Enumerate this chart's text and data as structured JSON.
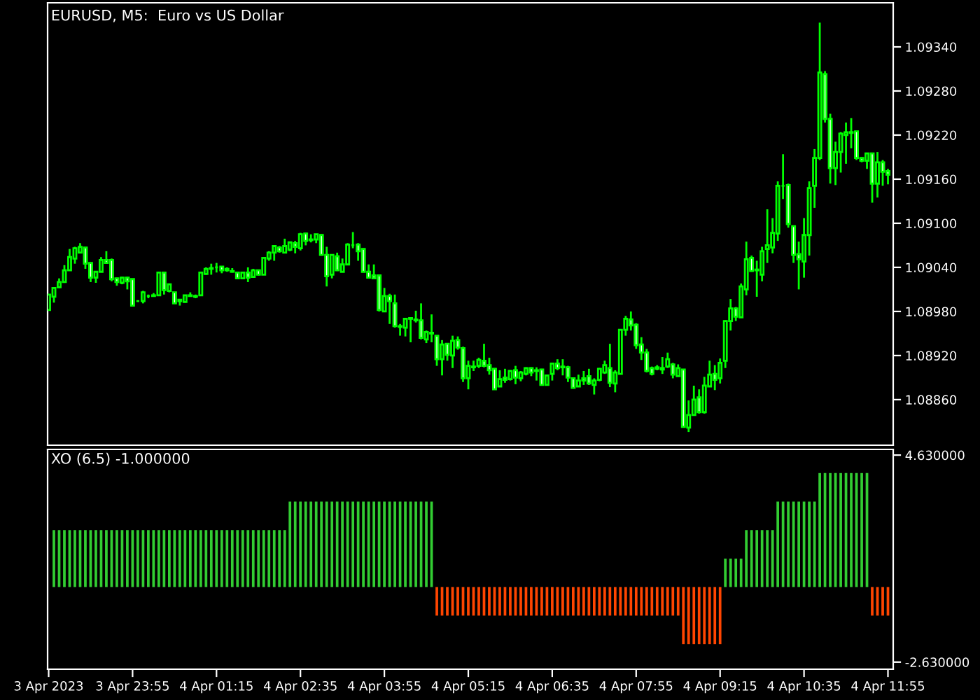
{
  "chart_data": [
    {
      "type": "candlestick",
      "title": "EURUSD, M5:  Euro vs US Dollar",
      "color": "#00ff00",
      "x": [
        "2023-04-03T22:35",
        "2023-04-03T22:40",
        "2023-04-03T22:45",
        "2023-04-03T22:50",
        "2023-04-03T22:55",
        "2023-04-03T23:00",
        "2023-04-03T23:05",
        "2023-04-03T23:10",
        "2023-04-03T23:15",
        "2023-04-03T23:20",
        "2023-04-03T23:25",
        "2023-04-03T23:30",
        "2023-04-03T23:35",
        "2023-04-03T23:40",
        "2023-04-03T23:45",
        "2023-04-03T23:50",
        "2023-04-03T23:55",
        "2023-04-04T00:00",
        "2023-04-04T00:05",
        "2023-04-04T00:10",
        "2023-04-04T00:15",
        "2023-04-04T00:20",
        "2023-04-04T00:25",
        "2023-04-04T00:30",
        "2023-04-04T00:35",
        "2023-04-04T00:40",
        "2023-04-04T00:45",
        "2023-04-04T00:50",
        "2023-04-04T00:55",
        "2023-04-04T01:00",
        "2023-04-04T01:05",
        "2023-04-04T01:10",
        "2023-04-04T01:15",
        "2023-04-04T01:20",
        "2023-04-04T01:25",
        "2023-04-04T01:30",
        "2023-04-04T01:35",
        "2023-04-04T01:40",
        "2023-04-04T01:45",
        "2023-04-04T01:50",
        "2023-04-04T01:55",
        "2023-04-04T02:00",
        "2023-04-04T02:05",
        "2023-04-04T02:10",
        "2023-04-04T02:15",
        "2023-04-04T02:20",
        "2023-04-04T02:25",
        "2023-04-04T02:30",
        "2023-04-04T02:35",
        "2023-04-04T02:40",
        "2023-04-04T02:45",
        "2023-04-04T02:50",
        "2023-04-04T02:55",
        "2023-04-04T03:00",
        "2023-04-04T03:05",
        "2023-04-04T03:10",
        "2023-04-04T03:15",
        "2023-04-04T03:20",
        "2023-04-04T03:25",
        "2023-04-04T03:30",
        "2023-04-04T03:35",
        "2023-04-04T03:40",
        "2023-04-04T03:45",
        "2023-04-04T03:50",
        "2023-04-04T03:55",
        "2023-04-04T04:00",
        "2023-04-04T04:05",
        "2023-04-04T04:10",
        "2023-04-04T04:15",
        "2023-04-04T04:20",
        "2023-04-04T04:25",
        "2023-04-04T04:30",
        "2023-04-04T04:35",
        "2023-04-04T04:40",
        "2023-04-04T04:45",
        "2023-04-04T04:50",
        "2023-04-04T04:55",
        "2023-04-04T05:00",
        "2023-04-04T05:05",
        "2023-04-04T05:10",
        "2023-04-04T05:15",
        "2023-04-04T05:20",
        "2023-04-04T05:25",
        "2023-04-04T05:30",
        "2023-04-04T05:35",
        "2023-04-04T05:40",
        "2023-04-04T05:45",
        "2023-04-04T05:50",
        "2023-04-04T05:55",
        "2023-04-04T06:00",
        "2023-04-04T06:05",
        "2023-04-04T06:10",
        "2023-04-04T06:15",
        "2023-04-04T06:20",
        "2023-04-04T06:25",
        "2023-04-04T06:30",
        "2023-04-04T06:35",
        "2023-04-04T06:40",
        "2023-04-04T06:45",
        "2023-04-04T06:50",
        "2023-04-04T06:55",
        "2023-04-04T07:00",
        "2023-04-04T07:05",
        "2023-04-04T07:10",
        "2023-04-04T07:15",
        "2023-04-04T07:20",
        "2023-04-04T07:25",
        "2023-04-04T07:30",
        "2023-04-04T07:35",
        "2023-04-04T07:40",
        "2023-04-04T07:45",
        "2023-04-04T07:50",
        "2023-04-04T07:55",
        "2023-04-04T08:00",
        "2023-04-04T08:05",
        "2023-04-04T08:10",
        "2023-04-04T08:15",
        "2023-04-04T08:20",
        "2023-04-04T08:25",
        "2023-04-04T08:30",
        "2023-04-04T08:35",
        "2023-04-04T08:40",
        "2023-04-04T08:45",
        "2023-04-04T08:50",
        "2023-04-04T08:55",
        "2023-04-04T09:00",
        "2023-04-04T09:05",
        "2023-04-04T09:10",
        "2023-04-04T09:15",
        "2023-04-04T09:20",
        "2023-04-04T09:25",
        "2023-04-04T09:30",
        "2023-04-04T09:35",
        "2023-04-04T09:40",
        "2023-04-04T09:45",
        "2023-04-04T09:50",
        "2023-04-04T09:55",
        "2023-04-04T10:00",
        "2023-04-04T10:05",
        "2023-04-04T10:10",
        "2023-04-04T10:15",
        "2023-04-04T10:20",
        "2023-04-04T10:25",
        "2023-04-04T10:30",
        "2023-04-04T10:35",
        "2023-04-04T10:40",
        "2023-04-04T10:45",
        "2023-04-04T10:50",
        "2023-04-04T10:55",
        "2023-04-04T11:00",
        "2023-04-04T11:05",
        "2023-04-04T11:10",
        "2023-04-04T11:15",
        "2023-04-04T11:20",
        "2023-04-04T11:25",
        "2023-04-04T11:30",
        "2023-04-04T11:35",
        "2023-04-04T11:40",
        "2023-04-04T11:45",
        "2023-04-04T11:50",
        "2023-04-04T11:55"
      ],
      "ohlc": [
        [
          1.08982,
          1.09003,
          1.08982,
          1.09003
        ],
        [
          1.09,
          1.09012,
          1.08992,
          1.09012
        ],
        [
          1.09013,
          1.09025,
          1.09012,
          1.0902
        ],
        [
          1.0902,
          1.09043,
          1.0902,
          1.09036
        ],
        [
          1.09036,
          1.09065,
          1.09036,
          1.09054
        ],
        [
          1.09052,
          1.09068,
          1.09045,
          1.09066
        ],
        [
          1.0906,
          1.09073,
          1.0906,
          1.09068
        ],
        [
          1.09067,
          1.09067,
          1.09038,
          1.09045
        ],
        [
          1.09046,
          1.09046,
          1.0902,
          1.09026
        ],
        [
          1.09026,
          1.09034,
          1.09019,
          1.09034
        ],
        [
          1.09034,
          1.09054,
          1.09034,
          1.0905
        ],
        [
          1.0905,
          1.09062,
          1.09045,
          1.09046
        ],
        [
          1.0905,
          1.09052,
          1.09021,
          1.09024
        ],
        [
          1.09025,
          1.09026,
          1.09015,
          1.0902
        ],
        [
          1.09019,
          1.09027,
          1.09017,
          1.09026
        ],
        [
          1.09026,
          1.09027,
          1.0901,
          1.09021
        ],
        [
          1.09024,
          1.09024,
          1.08988,
          1.08988
        ],
        [
          1.08994,
          1.08994,
          1.08994,
          1.08994
        ],
        [
          1.08994,
          1.09008,
          1.08991,
          1.09006
        ],
        [
          1.09001,
          1.09003,
          1.08998,
          1.09001
        ],
        [
          1.09001,
          1.09005,
          1.09,
          1.09002
        ],
        [
          1.09002,
          1.09033,
          1.09002,
          1.09033
        ],
        [
          1.09033,
          1.09033,
          1.09003,
          1.09009
        ],
        [
          1.09008,
          1.09017,
          1.09006,
          1.09017
        ],
        [
          1.09006,
          1.09006,
          1.08991,
          1.08991
        ],
        [
          1.08996,
          1.08996,
          1.08988,
          1.08994
        ],
        [
          1.08993,
          1.09002,
          1.08992,
          1.09002
        ],
        [
          1.09001,
          1.09006,
          1.09,
          1.09002
        ],
        [
          1.09,
          1.09003,
          1.08998,
          1.09001
        ],
        [
          1.09002,
          1.09033,
          1.09002,
          1.09033
        ],
        [
          1.09031,
          1.0904,
          1.0903,
          1.09038
        ],
        [
          1.09038,
          1.09045,
          1.0903,
          1.09039
        ],
        [
          1.0904,
          1.09046,
          1.09033,
          1.0904
        ],
        [
          1.09041,
          1.09041,
          1.09032,
          1.09036
        ],
        [
          1.09038,
          1.0904,
          1.09034,
          1.09036
        ],
        [
          1.09035,
          1.09039,
          1.09033,
          1.09034
        ],
        [
          1.09033,
          1.09033,
          1.09025,
          1.09025
        ],
        [
          1.09025,
          1.09034,
          1.09024,
          1.09033
        ],
        [
          1.09033,
          1.0904,
          1.0902,
          1.09026
        ],
        [
          1.09027,
          1.09038,
          1.09026,
          1.09036
        ],
        [
          1.09036,
          1.09037,
          1.09029,
          1.0903
        ],
        [
          1.0903,
          1.09053,
          1.0903,
          1.09053
        ],
        [
          1.09052,
          1.09062,
          1.09049,
          1.0906
        ],
        [
          1.0906,
          1.09069,
          1.09049,
          1.09069
        ],
        [
          1.09067,
          1.09069,
          1.0906,
          1.09062
        ],
        [
          1.0906,
          1.09079,
          1.0906,
          1.09069
        ],
        [
          1.09064,
          1.09074,
          1.09062,
          1.09074
        ],
        [
          1.09073,
          1.09076,
          1.09059,
          1.09068
        ],
        [
          1.09066,
          1.09087,
          1.09063,
          1.09085
        ],
        [
          1.09086,
          1.09087,
          1.0907,
          1.09076
        ],
        [
          1.09078,
          1.09085,
          1.09074,
          1.09077
        ],
        [
          1.09078,
          1.09085,
          1.09073,
          1.09085
        ],
        [
          1.09084,
          1.09085,
          1.09057,
          1.09057
        ],
        [
          1.09057,
          1.09068,
          1.09014,
          1.09028
        ],
        [
          1.0903,
          1.09058,
          1.09025,
          1.09057
        ],
        [
          1.09055,
          1.0906,
          1.09035,
          1.09036
        ],
        [
          1.09034,
          1.09052,
          1.09034,
          1.09044
        ],
        [
          1.09044,
          1.09073,
          1.09044,
          1.09071
        ],
        [
          1.0907,
          1.09088,
          1.09066,
          1.0907
        ],
        [
          1.09071,
          1.09073,
          1.09049,
          1.09062
        ],
        [
          1.09065,
          1.09066,
          1.09034,
          1.09034
        ],
        [
          1.09034,
          1.09044,
          1.09025,
          1.09026
        ],
        [
          1.09029,
          1.09044,
          1.09024,
          1.09025
        ],
        [
          1.09029,
          1.0903,
          1.0898,
          1.08982
        ],
        [
          1.0898,
          1.09012,
          1.0898,
          1.09001
        ],
        [
          1.09001,
          1.09004,
          1.08963,
          1.08994
        ],
        [
          1.08991,
          1.09003,
          1.08958,
          1.0896
        ],
        [
          1.0896,
          1.08963,
          1.08947,
          1.08959
        ],
        [
          1.08958,
          1.08971,
          1.08946,
          1.0897
        ],
        [
          1.08971,
          1.08972,
          1.08938,
          1.0897
        ],
        [
          1.08969,
          1.08981,
          1.08965,
          1.08968
        ],
        [
          1.08968,
          1.08991,
          1.08942,
          1.08944
        ],
        [
          1.08942,
          1.08954,
          1.08937,
          1.08952
        ],
        [
          1.08951,
          1.08976,
          1.08938,
          1.0895
        ],
        [
          1.08947,
          1.08947,
          1.08906,
          1.08915
        ],
        [
          1.08915,
          1.08941,
          1.08893,
          1.08935
        ],
        [
          1.08936,
          1.08937,
          1.08913,
          1.08921
        ],
        [
          1.0892,
          1.08947,
          1.08903,
          1.0894
        ],
        [
          1.08941,
          1.08946,
          1.08928,
          1.08931
        ],
        [
          1.0893,
          1.08932,
          1.08884,
          1.08889
        ],
        [
          1.08889,
          1.08913,
          1.08874,
          1.08906
        ],
        [
          1.08904,
          1.08913,
          1.08899,
          1.08905
        ],
        [
          1.08906,
          1.08917,
          1.08903,
          1.08914
        ],
        [
          1.08913,
          1.08936,
          1.08904,
          1.08906
        ],
        [
          1.08907,
          1.08917,
          1.08894,
          1.089
        ],
        [
          1.08902,
          1.08903,
          1.08874,
          1.08874
        ],
        [
          1.08878,
          1.089,
          1.08878,
          1.08888
        ],
        [
          1.0889,
          1.08902,
          1.08883,
          1.08887
        ],
        [
          1.08888,
          1.089,
          1.08886,
          1.08899
        ],
        [
          1.089,
          1.08906,
          1.08881,
          1.0889
        ],
        [
          1.08889,
          1.08899,
          1.08885,
          1.08897
        ],
        [
          1.08895,
          1.08904,
          1.08893,
          1.08903
        ],
        [
          1.08903,
          1.08904,
          1.08892,
          1.08897
        ],
        [
          1.089,
          1.08904,
          1.08886,
          1.08899
        ],
        [
          1.08901,
          1.08902,
          1.0888,
          1.0888
        ],
        [
          1.0888,
          1.08894,
          1.0888,
          1.08893
        ],
        [
          1.08895,
          1.08909,
          1.08886,
          1.08909
        ],
        [
          1.08909,
          1.08915,
          1.089,
          1.08903
        ],
        [
          1.08905,
          1.08915,
          1.08893,
          1.08904
        ],
        [
          1.08904,
          1.08906,
          1.08884,
          1.0889
        ],
        [
          1.08889,
          1.0889,
          1.08876,
          1.08876
        ],
        [
          1.08878,
          1.08894,
          1.08878,
          1.08886
        ],
        [
          1.08889,
          1.08899,
          1.0888,
          1.08886
        ],
        [
          1.08892,
          1.08902,
          1.0888,
          1.08882
        ],
        [
          1.0888,
          1.08889,
          1.08867,
          1.08886
        ],
        [
          1.08887,
          1.08903,
          1.08885,
          1.08902
        ],
        [
          1.08897,
          1.08913,
          1.08895,
          1.08907
        ],
        [
          1.08903,
          1.08936,
          1.08877,
          1.08883
        ],
        [
          1.08882,
          1.089,
          1.0887,
          1.08897
        ],
        [
          1.08895,
          1.08955,
          1.08895,
          1.08955
        ],
        [
          1.08955,
          1.08974,
          1.08947,
          1.0897
        ],
        [
          1.08969,
          1.0898,
          1.08954,
          1.08961
        ],
        [
          1.08962,
          1.08964,
          1.08929,
          1.08934
        ],
        [
          1.08935,
          1.08945,
          1.08914,
          1.08924
        ],
        [
          1.08924,
          1.08929,
          1.08897,
          1.08899
        ],
        [
          1.08903,
          1.08905,
          1.08893,
          1.08895
        ],
        [
          1.08904,
          1.08907,
          1.089,
          1.08902
        ],
        [
          1.08903,
          1.08918,
          1.08895,
          1.08901
        ],
        [
          1.08905,
          1.08924,
          1.08903,
          1.08915
        ],
        [
          1.08908,
          1.0891,
          1.08889,
          1.08894
        ],
        [
          1.08892,
          1.08908,
          1.08892,
          1.08903
        ],
        [
          1.08901,
          1.08901,
          1.08823,
          1.08823
        ],
        [
          1.08822,
          1.08859,
          1.08816,
          1.08839
        ],
        [
          1.08839,
          1.08879,
          1.08839,
          1.0886
        ],
        [
          1.08863,
          1.08874,
          1.08841,
          1.08843
        ],
        [
          1.08843,
          1.08891,
          1.08841,
          1.08879
        ],
        [
          1.08878,
          1.08913,
          1.08878,
          1.08894
        ],
        [
          1.08895,
          1.08907,
          1.08873,
          1.08887
        ],
        [
          1.08889,
          1.08916,
          1.08882,
          1.0891
        ],
        [
          1.08913,
          1.08968,
          1.08903,
          1.08967
        ],
        [
          1.08967,
          1.08997,
          1.08954,
          1.08984
        ],
        [
          1.08984,
          1.08986,
          1.08967,
          1.08973
        ],
        [
          1.08972,
          1.09018,
          1.08972,
          1.09014
        ],
        [
          1.0901,
          1.09075,
          1.09002,
          1.09051
        ],
        [
          1.09053,
          1.09056,
          1.09034,
          1.09035
        ],
        [
          1.09037,
          1.09049,
          1.09,
          1.09036
        ],
        [
          1.0903,
          1.09068,
          1.09021,
          1.09062
        ],
        [
          1.09065,
          1.09119,
          1.09046,
          1.0907
        ],
        [
          1.09067,
          1.09107,
          1.09059,
          1.09087
        ],
        [
          1.09086,
          1.09157,
          1.09076,
          1.09151
        ],
        [
          1.09151,
          1.09194,
          1.09133,
          1.09151
        ],
        [
          1.09152,
          1.09154,
          1.09094,
          1.09099
        ],
        [
          1.09096,
          1.09096,
          1.09046,
          1.09057
        ],
        [
          1.09058,
          1.09075,
          1.0901,
          1.09051
        ],
        [
          1.09048,
          1.09107,
          1.09026,
          1.09084
        ],
        [
          1.09084,
          1.09157,
          1.09056,
          1.09148
        ],
        [
          1.09151,
          1.09201,
          1.09121,
          1.09189
        ],
        [
          1.09189,
          1.09373,
          1.09186,
          1.09305
        ],
        [
          1.09303,
          1.09307,
          1.09237,
          1.09242
        ],
        [
          1.09242,
          1.09249,
          1.09154,
          1.09175
        ],
        [
          1.09175,
          1.09211,
          1.09152,
          1.09197
        ],
        [
          1.09197,
          1.09224,
          1.09169,
          1.09222
        ],
        [
          1.0922,
          1.09237,
          1.09181,
          1.09224
        ],
        [
          1.09223,
          1.09243,
          1.09202,
          1.09224
        ],
        [
          1.09225,
          1.09225,
          1.09186,
          1.09189
        ],
        [
          1.09189,
          1.0919,
          1.09183,
          1.09185
        ],
        [
          1.09185,
          1.09195,
          1.09174,
          1.09195
        ],
        [
          1.09195,
          1.09195,
          1.09128,
          1.09154
        ],
        [
          1.09154,
          1.09197,
          1.09135,
          1.09183
        ],
        [
          1.09183,
          1.09186,
          1.09151,
          1.0917
        ],
        [
          1.09171,
          1.09174,
          1.09153,
          1.09166
        ]
      ],
      "xlim": [
        "2023-04-03T22:34",
        "2023-04-04T12:00"
      ],
      "ylim": [
        1.08798,
        1.094
      ],
      "yticks": [
        {
          "value": 1.0886,
          "label": "1.08860"
        },
        {
          "value": 1.0892,
          "label": "1.08920"
        },
        {
          "value": 1.0898,
          "label": "1.08980"
        },
        {
          "value": 1.0904,
          "label": "1.09040"
        },
        {
          "value": 1.091,
          "label": "1.09100"
        },
        {
          "value": 1.0916,
          "label": "1.09160"
        },
        {
          "value": 1.0922,
          "label": "1.09220"
        },
        {
          "value": 1.0928,
          "label": "1.09280"
        },
        {
          "value": 1.0934,
          "label": "1.09340"
        }
      ],
      "tick_labels": "y"
    },
    {
      "type": "bar",
      "title": "XO (6.5) -1.000000",
      "x": [
        "2023-04-03T22:40",
        "2023-04-03T22:45",
        "2023-04-03T22:50",
        "2023-04-03T22:55",
        "2023-04-03T23:00",
        "2023-04-03T23:05",
        "2023-04-03T23:10",
        "2023-04-03T23:15",
        "2023-04-03T23:20",
        "2023-04-03T23:25",
        "2023-04-03T23:30",
        "2023-04-03T23:35",
        "2023-04-03T23:40",
        "2023-04-03T23:45",
        "2023-04-03T23:50",
        "2023-04-03T23:55",
        "2023-04-04T00:00",
        "2023-04-04T00:05",
        "2023-04-04T00:10",
        "2023-04-04T00:15",
        "2023-04-04T00:20",
        "2023-04-04T00:25",
        "2023-04-04T00:30",
        "2023-04-04T00:35",
        "2023-04-04T00:40",
        "2023-04-04T00:45",
        "2023-04-04T00:50",
        "2023-04-04T00:55",
        "2023-04-04T01:00",
        "2023-04-04T01:05",
        "2023-04-04T01:10",
        "2023-04-04T01:15",
        "2023-04-04T01:20",
        "2023-04-04T01:25",
        "2023-04-04T01:30",
        "2023-04-04T01:35",
        "2023-04-04T01:40",
        "2023-04-04T01:45",
        "2023-04-04T01:50",
        "2023-04-04T01:55",
        "2023-04-04T02:00",
        "2023-04-04T02:05",
        "2023-04-04T02:10",
        "2023-04-04T02:15",
        "2023-04-04T02:20",
        "2023-04-04T02:25",
        "2023-04-04T02:30",
        "2023-04-04T02:35",
        "2023-04-04T02:40",
        "2023-04-04T02:45",
        "2023-04-04T02:50",
        "2023-04-04T02:55",
        "2023-04-04T03:00",
        "2023-04-04T03:05",
        "2023-04-04T03:10",
        "2023-04-04T03:15",
        "2023-04-04T03:20",
        "2023-04-04T03:25",
        "2023-04-04T03:30",
        "2023-04-04T03:35",
        "2023-04-04T03:40",
        "2023-04-04T03:45",
        "2023-04-04T03:50",
        "2023-04-04T03:55",
        "2023-04-04T04:00",
        "2023-04-04T04:05",
        "2023-04-04T04:10",
        "2023-04-04T04:15",
        "2023-04-04T04:20",
        "2023-04-04T04:25",
        "2023-04-04T04:30",
        "2023-04-04T04:35",
        "2023-04-04T04:40",
        "2023-04-04T04:45",
        "2023-04-04T04:50",
        "2023-04-04T04:55",
        "2023-04-04T05:00",
        "2023-04-04T05:05",
        "2023-04-04T05:10",
        "2023-04-04T05:15",
        "2023-04-04T05:20",
        "2023-04-04T05:25",
        "2023-04-04T05:30",
        "2023-04-04T05:35",
        "2023-04-04T05:40",
        "2023-04-04T05:45",
        "2023-04-04T05:50",
        "2023-04-04T05:55",
        "2023-04-04T06:00",
        "2023-04-04T06:05",
        "2023-04-04T06:10",
        "2023-04-04T06:15",
        "2023-04-04T06:20",
        "2023-04-04T06:25",
        "2023-04-04T06:30",
        "2023-04-04T06:35",
        "2023-04-04T06:40",
        "2023-04-04T06:45",
        "2023-04-04T06:50",
        "2023-04-04T06:55",
        "2023-04-04T07:00",
        "2023-04-04T07:05",
        "2023-04-04T07:10",
        "2023-04-04T07:15",
        "2023-04-04T07:20",
        "2023-04-04T07:25",
        "2023-04-04T07:30",
        "2023-04-04T07:35",
        "2023-04-04T07:40",
        "2023-04-04T07:45",
        "2023-04-04T07:50",
        "2023-04-04T07:55",
        "2023-04-04T08:00",
        "2023-04-04T08:05",
        "2023-04-04T08:10",
        "2023-04-04T08:15",
        "2023-04-04T08:20",
        "2023-04-04T08:25",
        "2023-04-04T08:30",
        "2023-04-04T08:35",
        "2023-04-04T08:40",
        "2023-04-04T08:45",
        "2023-04-04T08:50",
        "2023-04-04T08:55",
        "2023-04-04T09:00",
        "2023-04-04T09:05",
        "2023-04-04T09:10",
        "2023-04-04T09:15",
        "2023-04-04T09:20",
        "2023-04-04T09:25",
        "2023-04-04T09:30",
        "2023-04-04T09:35",
        "2023-04-04T09:40",
        "2023-04-04T09:45",
        "2023-04-04T09:50",
        "2023-04-04T09:55",
        "2023-04-04T10:00",
        "2023-04-04T10:05",
        "2023-04-04T10:10",
        "2023-04-04T10:15",
        "2023-04-04T10:20",
        "2023-04-04T10:25",
        "2023-04-04T10:30",
        "2023-04-04T10:35",
        "2023-04-04T10:40",
        "2023-04-04T10:45",
        "2023-04-04T10:50",
        "2023-04-04T10:55",
        "2023-04-04T11:00",
        "2023-04-04T11:05",
        "2023-04-04T11:10",
        "2023-04-04T11:15",
        "2023-04-04T11:20",
        "2023-04-04T11:25",
        "2023-04-04T11:30",
        "2023-04-04T11:35",
        "2023-04-04T11:40",
        "2023-04-04T11:45",
        "2023-04-04T11:50",
        "2023-04-04T11:55"
      ],
      "values": [
        2,
        2,
        2,
        2,
        2,
        2,
        2,
        2,
        2,
        2,
        2,
        2,
        2,
        2,
        2,
        2,
        2,
        2,
        2,
        2,
        2,
        2,
        2,
        2,
        2,
        2,
        2,
        2,
        2,
        2,
        2,
        2,
        2,
        2,
        2,
        2,
        2,
        2,
        2,
        2,
        2,
        2,
        2,
        2,
        2,
        3,
        3,
        3,
        3,
        3,
        3,
        3,
        3,
        3,
        3,
        3,
        3,
        3,
        3,
        3,
        3,
        3,
        3,
        3,
        3,
        3,
        3,
        3,
        3,
        3,
        3,
        3,
        3,
        -1,
        -1,
        -1,
        -1,
        -1,
        -1,
        -1,
        -1,
        -1,
        -1,
        -1,
        -1,
        -1,
        -1,
        -1,
        -1,
        -1,
        -1,
        -1,
        -1,
        -1,
        -1,
        -1,
        -1,
        -1,
        -1,
        -1,
        -1,
        -1,
        -1,
        -1,
        -1,
        -1,
        -1,
        -1,
        -1,
        -1,
        -1,
        -1,
        -1,
        -1,
        -1,
        -1,
        -1,
        -1,
        -1,
        -1,
        -2,
        -2,
        -2,
        -2,
        -2,
        -2,
        -2,
        -2,
        1,
        1,
        1,
        1,
        2,
        2,
        2,
        2,
        2,
        2,
        3,
        3,
        3,
        3,
        3,
        3,
        3,
        3,
        4,
        4,
        4,
        4,
        4,
        4,
        4,
        4,
        4,
        4,
        -1,
        -1,
        -1,
        -1
      ],
      "colors": [
        "#32cd32",
        "#32cd32",
        "#32cd32",
        "#32cd32",
        "#32cd32",
        "#32cd32",
        "#32cd32",
        "#32cd32",
        "#32cd32",
        "#32cd32",
        "#32cd32",
        "#32cd32",
        "#32cd32",
        "#32cd32",
        "#32cd32",
        "#32cd32",
        "#32cd32",
        "#32cd32",
        "#32cd32",
        "#32cd32",
        "#32cd32",
        "#32cd32",
        "#32cd32",
        "#32cd32",
        "#32cd32",
        "#32cd32",
        "#32cd32",
        "#32cd32",
        "#32cd32",
        "#32cd32",
        "#32cd32",
        "#32cd32",
        "#32cd32",
        "#32cd32",
        "#32cd32",
        "#32cd32",
        "#32cd32",
        "#32cd32",
        "#32cd32",
        "#32cd32",
        "#32cd32",
        "#32cd32",
        "#32cd32",
        "#32cd32",
        "#32cd32",
        "#32cd32",
        "#32cd32",
        "#32cd32",
        "#32cd32",
        "#32cd32",
        "#32cd32",
        "#32cd32",
        "#32cd32",
        "#32cd32",
        "#32cd32",
        "#32cd32",
        "#32cd32",
        "#32cd32",
        "#32cd32",
        "#32cd32",
        "#32cd32",
        "#32cd32",
        "#32cd32",
        "#32cd32",
        "#32cd32",
        "#32cd32",
        "#32cd32",
        "#32cd32",
        "#32cd32",
        "#32cd32",
        "#32cd32",
        "#32cd32",
        "#32cd32",
        "#ff4500",
        "#ff4500",
        "#ff4500",
        "#ff4500",
        "#ff4500",
        "#ff4500",
        "#ff4500",
        "#ff4500",
        "#ff4500",
        "#ff4500",
        "#ff4500",
        "#ff4500",
        "#ff4500",
        "#ff4500",
        "#ff4500",
        "#ff4500",
        "#ff4500",
        "#ff4500",
        "#ff4500",
        "#ff4500",
        "#ff4500",
        "#ff4500",
        "#ff4500",
        "#ff4500",
        "#ff4500",
        "#ff4500",
        "#ff4500",
        "#ff4500",
        "#ff4500",
        "#ff4500",
        "#ff4500",
        "#ff4500",
        "#ff4500",
        "#ff4500",
        "#ff4500",
        "#ff4500",
        "#ff4500",
        "#ff4500",
        "#ff4500",
        "#ff4500",
        "#ff4500",
        "#ff4500",
        "#ff4500",
        "#ff4500",
        "#ff4500",
        "#ff4500",
        "#ff4500",
        "#ff4500",
        "#ff4500",
        "#ff4500",
        "#ff4500",
        "#ff4500",
        "#ff4500",
        "#ff4500",
        "#ff4500",
        "#32cd32",
        "#32cd32",
        "#32cd32",
        "#32cd32",
        "#32cd32",
        "#32cd32",
        "#32cd32",
        "#32cd32",
        "#32cd32",
        "#32cd32",
        "#32cd32",
        "#32cd32",
        "#32cd32",
        "#32cd32",
        "#32cd32",
        "#32cd32",
        "#32cd32",
        "#32cd32",
        "#32cd32",
        "#32cd32",
        "#32cd32",
        "#32cd32",
        "#32cd32",
        "#32cd32",
        "#32cd32",
        "#32cd32",
        "#32cd32",
        "#32cd32",
        "#ff4500",
        "#ff4500",
        "#ff4500",
        "#ff4500"
      ],
      "xlim": [
        "2023-04-03T22:34",
        "2023-04-04T12:00"
      ],
      "xticks": [
        {
          "value": "2023-04-03T22:35",
          "label": "3 Apr 2023"
        },
        {
          "value": "2023-04-03T23:55",
          "label": "3 Apr 23:55"
        },
        {
          "value": "2023-04-04T01:15",
          "label": "4 Apr 01:15"
        },
        {
          "value": "2023-04-04T02:35",
          "label": "4 Apr 02:35"
        },
        {
          "value": "2023-04-04T03:55",
          "label": "4 Apr 03:55"
        },
        {
          "value": "2023-04-04T05:15",
          "label": "4 Apr 05:15"
        },
        {
          "value": "2023-04-04T06:35",
          "label": "4 Apr 06:35"
        },
        {
          "value": "2023-04-04T07:55",
          "label": "4 Apr 07:55"
        },
        {
          "value": "2023-04-04T09:15",
          "label": "4 Apr 09:15"
        },
        {
          "value": "2023-04-04T10:35",
          "label": "4 Apr 10:35"
        },
        {
          "value": "2023-04-04T11:55",
          "label": "4 Apr 11:55"
        }
      ],
      "ylim": [
        -2.88,
        4.83
      ],
      "yticks": [
        {
          "value": -2.63,
          "label": "-2.630000"
        },
        {
          "value": 4.63,
          "label": "4.630000"
        }
      ]
    }
  ]
}
